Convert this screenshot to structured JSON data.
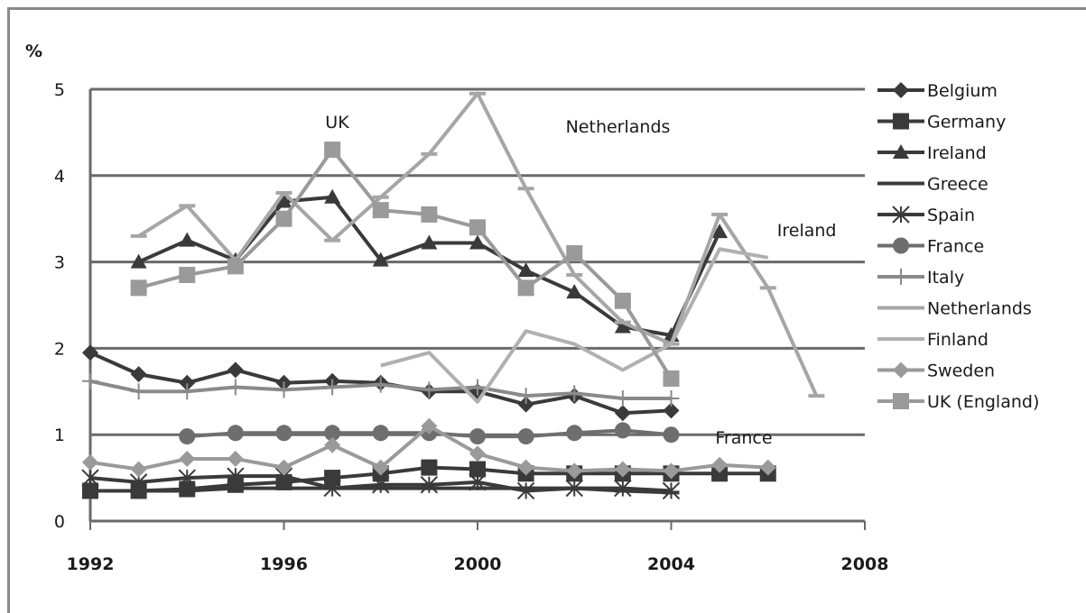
{
  "chart_data": {
    "type": "line",
    "ylabel": "%",
    "xlim": [
      1992,
      2008
    ],
    "ylim": [
      0,
      5
    ],
    "y_ticks": [
      "0",
      "1",
      "2",
      "3",
      "4",
      "5"
    ],
    "x_ticks": [
      "1992",
      "1996",
      "2000",
      "2004",
      "2008"
    ],
    "grid": "horizontal",
    "legend_position": "right",
    "annotations": [
      {
        "text": "UK",
        "x": 1997.1,
        "y": 4.55
      },
      {
        "text": "Netherlands",
        "x": 2002.9,
        "y": 4.5
      },
      {
        "text": "Ireland",
        "x": 2006.8,
        "y": 3.3
      },
      {
        "text": "France",
        "x": 2005.5,
        "y": 0.9
      }
    ],
    "series": [
      {
        "name": "Belgium",
        "color": "#3a3a3a",
        "marker": "diamond",
        "x": [
          1992,
          1993,
          1994,
          1995,
          1996,
          1997,
          1998,
          1999,
          2000,
          2001,
          2002,
          2003,
          2004
        ],
        "y": [
          1.95,
          1.7,
          1.6,
          1.75,
          1.6,
          1.62,
          1.6,
          1.5,
          1.5,
          1.35,
          1.45,
          1.25,
          1.28
        ]
      },
      {
        "name": "Germany",
        "color": "#3a3a3a",
        "marker": "square",
        "x": [
          1992,
          1993,
          1994,
          1995,
          1996,
          1997,
          1998,
          1999,
          2000,
          2001,
          2002,
          2003,
          2004,
          2005,
          2006
        ],
        "y": [
          0.35,
          0.35,
          0.37,
          0.42,
          0.45,
          0.5,
          0.55,
          0.62,
          0.6,
          0.55,
          0.55,
          0.55,
          0.55,
          0.55,
          0.55
        ]
      },
      {
        "name": "Ireland",
        "color": "#3a3a3a",
        "marker": "triangle",
        "x": [
          1993,
          1994,
          1995,
          1996,
          1997,
          1998,
          1999,
          2000,
          2001,
          2002,
          2003,
          2004,
          2005
        ],
        "y": [
          3.0,
          3.25,
          3.02,
          3.7,
          3.75,
          3.02,
          3.22,
          3.22,
          2.9,
          2.65,
          2.25,
          2.15,
          3.35
        ]
      },
      {
        "name": "Greece",
        "color": "#3a3a3a",
        "marker": "dash",
        "x": [
          1992,
          1993,
          1994,
          1995,
          1996,
          1997,
          1998,
          1999,
          2000,
          2001,
          2002,
          2003,
          2004
        ],
        "y": [
          0.35,
          0.35,
          0.35,
          0.38,
          0.38,
          0.38,
          0.38,
          0.38,
          0.38,
          0.38,
          0.38,
          0.35,
          0.33
        ]
      },
      {
        "name": "Spain",
        "color": "#3a3a3a",
        "marker": "star",
        "x": [
          1992,
          1993,
          1994,
          1995,
          1996,
          1997,
          1998,
          1999,
          2000,
          2001,
          2002,
          2003,
          2004
        ],
        "y": [
          0.5,
          0.45,
          0.5,
          0.52,
          0.52,
          0.38,
          0.42,
          0.42,
          0.45,
          0.35,
          0.38,
          0.38,
          0.35
        ]
      },
      {
        "name": "France",
        "color": "#6e6e6e",
        "marker": "circle",
        "x": [
          1994,
          1995,
          1996,
          1997,
          1998,
          1999,
          2000,
          2001,
          2002,
          2003,
          2004
        ],
        "y": [
          0.98,
          1.02,
          1.02,
          1.02,
          1.02,
          1.02,
          0.98,
          0.98,
          1.02,
          1.05,
          1.0
        ]
      },
      {
        "name": "Italy",
        "color": "#8a8a8a",
        "marker": "plus",
        "x": [
          1992,
          1993,
          1994,
          1995,
          1996,
          1997,
          1998,
          1999,
          2000,
          2001,
          2002,
          2003,
          2004
        ],
        "y": [
          1.62,
          1.5,
          1.5,
          1.55,
          1.52,
          1.55,
          1.58,
          1.52,
          1.55,
          1.45,
          1.48,
          1.42,
          1.42
        ]
      },
      {
        "name": "Netherlands",
        "color": "#a6a6a6",
        "marker": "dash",
        "x": [
          1993,
          1994,
          1995,
          1996,
          1997,
          1998,
          1999,
          2000,
          2001,
          2002,
          2003,
          2004,
          2005,
          2006,
          2007
        ],
        "y": [
          3.3,
          3.65,
          3.02,
          3.8,
          3.25,
          3.75,
          4.25,
          4.95,
          3.85,
          2.85,
          2.3,
          2.05,
          3.55,
          2.7,
          1.45
        ]
      },
      {
        "name": "Finland",
        "color": "#b0b0b0",
        "marker": "none",
        "x": [
          1998,
          1999,
          2000,
          2001,
          2002,
          2003,
          2004,
          2005,
          2006
        ],
        "y": [
          1.8,
          1.95,
          1.38,
          2.2,
          2.05,
          1.75,
          2.05,
          3.15,
          3.05
        ]
      },
      {
        "name": "Sweden",
        "color": "#9a9a9a",
        "marker": "diamond",
        "x": [
          1992,
          1993,
          1994,
          1995,
          1996,
          1997,
          1998,
          1999,
          2000,
          2001,
          2002,
          2003,
          2004,
          2005,
          2006
        ],
        "y": [
          0.68,
          0.6,
          0.72,
          0.72,
          0.62,
          0.88,
          0.62,
          1.1,
          0.78,
          0.62,
          0.58,
          0.6,
          0.58,
          0.65,
          0.62
        ]
      },
      {
        "name": "UK (England)",
        "color": "#9a9a9a",
        "marker": "square",
        "x": [
          1993,
          1994,
          1995,
          1996,
          1997,
          1998,
          1999,
          2000,
          2001,
          2002,
          2003,
          2004
        ],
        "y": [
          2.7,
          2.85,
          2.95,
          3.5,
          4.3,
          3.6,
          3.55,
          3.4,
          2.7,
          3.1,
          2.55,
          1.65
        ]
      }
    ]
  }
}
